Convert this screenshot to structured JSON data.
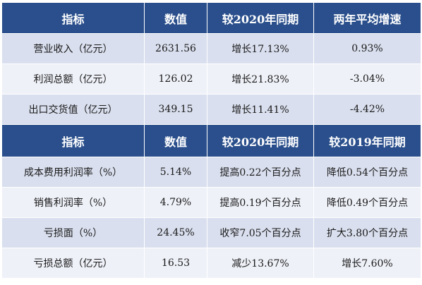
{
  "table1": {
    "headers": [
      "指标",
      "数值",
      "较2020年同期",
      "两年平均增速"
    ],
    "rows": [
      [
        "营业收入（亿元）",
        "2631.56",
        "增长17.13%",
        "0.93%"
      ],
      [
        "利润总额（亿元）",
        "126.02",
        "增长21.83%",
        "-3.04%"
      ],
      [
        "出口交货值（亿元）",
        "349.15",
        "增长11.41%",
        "-4.42%"
      ]
    ]
  },
  "table2": {
    "headers": [
      "指标",
      "数值",
      "较2020年同期",
      "较2019年同期"
    ],
    "rows": [
      [
        "成本费用利润率（%）",
        "5.14%",
        "提高0.22个百分点",
        "降低0.54个百分点"
      ],
      [
        "销售利润率（%）",
        "4.79%",
        "提高0.19个百分点",
        "降低0.49个百分点"
      ],
      [
        "亏损面（%）",
        "24.45%",
        "收窄7.05个百分点",
        "扩大3.80个百分点"
      ],
      [
        "亏损总额（亿元）",
        "16.53",
        "减少13.67%",
        "增长7.60%"
      ]
    ]
  },
  "colors": {
    "header_bg": "#2a4f8c",
    "header_text": "#ffffff",
    "row_shade_dark": "#d9dfee",
    "row_shade_light": "#eef1f8"
  }
}
